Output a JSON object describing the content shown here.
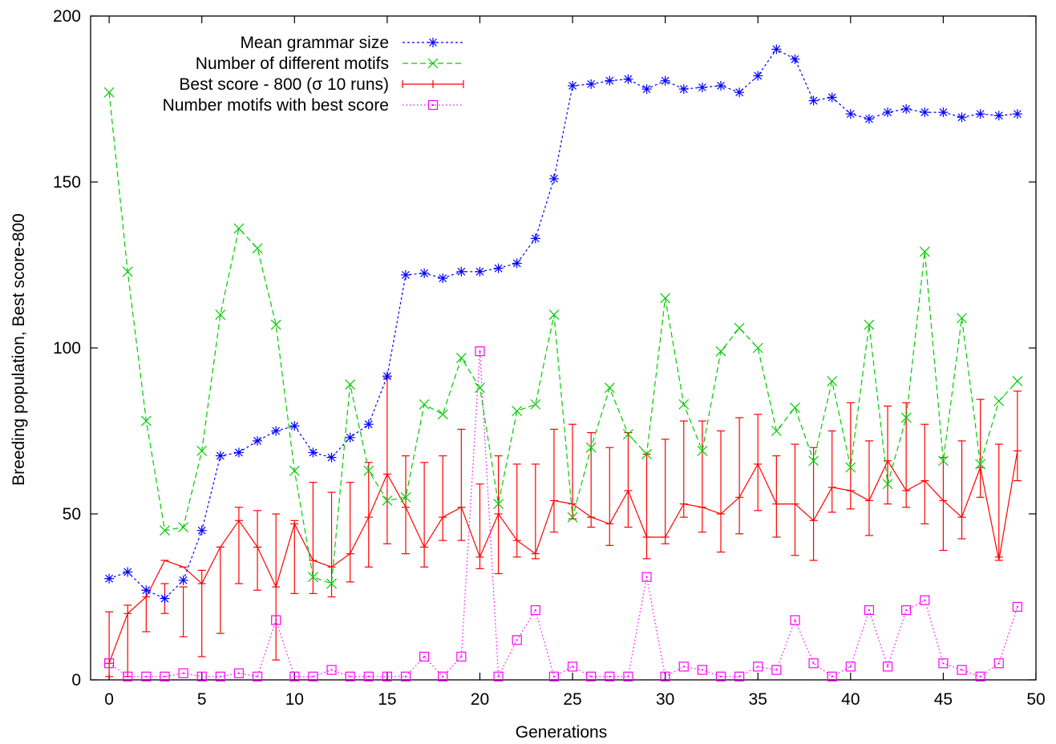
{
  "chart_data": {
    "type": "line",
    "title": "",
    "xlabel": "Generations",
    "ylabel": "Breeding population, Best score-800",
    "xlim": [
      -1,
      50
    ],
    "ylim": [
      0,
      200
    ],
    "xticks": [
      0,
      5,
      10,
      15,
      20,
      25,
      30,
      35,
      40,
      45,
      50
    ],
    "yticks": [
      0,
      50,
      100,
      150,
      200
    ],
    "grid": false,
    "legend_position": "top-center",
    "series": [
      {
        "name": "Mean grammar size",
        "color": "#0000ff",
        "dash": "dash",
        "marker": "asterisk",
        "x": [
          0,
          1,
          2,
          3,
          4,
          5,
          6,
          7,
          8,
          9,
          10,
          11,
          12,
          13,
          14,
          15,
          16,
          17,
          18,
          19,
          20,
          21,
          22,
          23,
          24,
          25,
          26,
          27,
          28,
          29,
          30,
          31,
          32,
          33,
          34,
          35,
          36,
          37,
          38,
          39,
          40,
          41,
          42,
          43,
          44,
          45,
          46,
          47,
          48,
          49
        ],
        "values": [
          30.5,
          32.5,
          27,
          24.5,
          30,
          45,
          67.5,
          68.5,
          72,
          75,
          76.5,
          68.5,
          67,
          73,
          77,
          91.5,
          122,
          122.5,
          121,
          123,
          123,
          124,
          125.5,
          133,
          151,
          179,
          179.5,
          180.5,
          181,
          178,
          180.5,
          178,
          178.5,
          179,
          177,
          182,
          190,
          187,
          174.5,
          175.5,
          170.5,
          169,
          171,
          172,
          171,
          171,
          169.5,
          170.5,
          170,
          170.5
        ]
      },
      {
        "name": "Number of different motifs",
        "color": "#00cc00",
        "dash": "longdash",
        "marker": "cross",
        "x": [
          0,
          1,
          2,
          3,
          4,
          5,
          6,
          7,
          8,
          9,
          10,
          11,
          12,
          13,
          14,
          15,
          16,
          17,
          18,
          19,
          20,
          21,
          22,
          23,
          24,
          25,
          26,
          27,
          28,
          29,
          30,
          31,
          32,
          33,
          34,
          35,
          36,
          37,
          38,
          39,
          40,
          41,
          42,
          43,
          44,
          45,
          46,
          47,
          48,
          49
        ],
        "values": [
          177,
          123,
          78,
          45,
          46,
          69,
          110,
          136,
          130,
          107,
          63,
          31,
          29,
          89,
          63,
          54,
          55,
          83,
          80,
          97,
          88,
          53,
          81,
          83,
          110,
          49,
          70,
          88,
          74,
          68,
          115,
          83,
          69,
          99,
          106,
          100,
          75,
          82,
          66,
          90,
          64,
          107,
          59,
          79,
          129,
          66,
          109,
          65,
          84,
          90
        ]
      },
      {
        "name": "Best score - 800 (σ 10 runs)",
        "color": "#ff0000",
        "dash": "solid",
        "marker": "errorbar",
        "x": [
          0,
          1,
          2,
          3,
          4,
          5,
          6,
          7,
          8,
          9,
          10,
          11,
          12,
          13,
          14,
          15,
          16,
          17,
          18,
          19,
          20,
          21,
          22,
          23,
          24,
          25,
          26,
          27,
          28,
          29,
          30,
          31,
          32,
          33,
          34,
          35,
          36,
          37,
          38,
          39,
          40,
          41,
          42,
          43,
          44,
          45,
          46,
          47,
          48,
          49
        ],
        "values": [
          5,
          20,
          25,
          36,
          34,
          29,
          40,
          48,
          40,
          28,
          47,
          36,
          34,
          38,
          49,
          62,
          52,
          40,
          49,
          52,
          37,
          50,
          42,
          38,
          54,
          53,
          49,
          47,
          57,
          43,
          43,
          53,
          52,
          50,
          55,
          65,
          53,
          53,
          48,
          58,
          57,
          54,
          66,
          57,
          60,
          54,
          49,
          64,
          36,
          69
        ],
        "err_high": [
          20.5,
          22.5,
          27,
          29,
          28,
          33,
          40,
          52,
          51,
          50,
          48,
          59.5,
          56.5,
          59.5,
          65.5,
          91,
          67.5,
          65.5,
          67.5,
          75.5,
          59,
          67.5,
          65,
          65,
          75.5,
          77,
          74.5,
          70,
          74.5,
          68,
          72.5,
          78,
          78,
          75,
          79,
          80,
          67.5,
          71,
          70,
          75,
          83.5,
          72,
          82.5,
          83.5,
          77,
          67,
          72,
          84.5,
          71,
          87
        ],
        "err_low": [
          1,
          1,
          14.5,
          20,
          13,
          7,
          14,
          29,
          27,
          6,
          26,
          26,
          25,
          29.5,
          34,
          41,
          38,
          34,
          42,
          42,
          33.5,
          32,
          37,
          36.5,
          44.5,
          48.5,
          46,
          40.5,
          46,
          36.5,
          41,
          49,
          44.5,
          38.5,
          44,
          51,
          43,
          37.5,
          36,
          50.5,
          51.5,
          43.5,
          53,
          52,
          47,
          39,
          42.5,
          55,
          37,
          60
        ]
      },
      {
        "name": "Number motifs with best score",
        "color": "#ff00ff",
        "dash": "dot",
        "marker": "square",
        "x": [
          0,
          1,
          2,
          3,
          4,
          5,
          6,
          7,
          8,
          9,
          10,
          11,
          12,
          13,
          14,
          15,
          16,
          17,
          18,
          19,
          20,
          21,
          22,
          23,
          24,
          25,
          26,
          27,
          28,
          29,
          30,
          31,
          32,
          33,
          34,
          35,
          36,
          37,
          38,
          39,
          40,
          41,
          42,
          43,
          44,
          45,
          46,
          47,
          48,
          49
        ],
        "values": [
          5,
          1,
          1,
          1,
          2,
          1,
          1,
          2,
          1,
          18,
          1,
          1,
          3,
          1,
          1,
          1,
          1,
          7,
          1,
          7,
          99,
          1,
          12,
          21,
          1,
          4,
          1,
          1,
          1,
          31,
          1,
          4,
          3,
          1,
          1,
          4,
          3,
          18,
          5,
          1,
          4,
          21,
          4,
          21,
          24,
          5,
          3,
          1,
          5,
          22
        ]
      }
    ]
  }
}
